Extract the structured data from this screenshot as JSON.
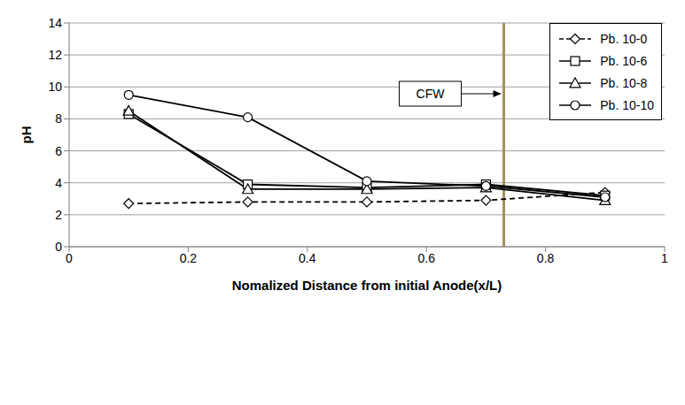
{
  "chart_data": {
    "type": "line",
    "x_label": "Nomalized Distance from initial Anode(x/L)",
    "y_label": "pH",
    "x": [
      0.1,
      0.3,
      0.5,
      0.7,
      0.9
    ],
    "series": [
      {
        "name": "Pb. 10-0",
        "color": "#000000",
        "marker": "diamond",
        "line_style": "dashed",
        "values": [
          2.7,
          2.8,
          2.8,
          2.9,
          3.4
        ]
      },
      {
        "name": "Pb. 10-6",
        "color": "#000000",
        "marker": "square",
        "line_style": "solid",
        "values": [
          8.3,
          3.9,
          3.7,
          3.9,
          3.2
        ]
      },
      {
        "name": "Pb. 10-8",
        "color": "#000000",
        "marker": "triangle",
        "line_style": "solid",
        "values": [
          8.5,
          3.6,
          3.6,
          3.7,
          2.9
        ]
      },
      {
        "name": "Pb. 10-10",
        "color": "#000000",
        "marker": "circle",
        "line_style": "solid",
        "values": [
          9.5,
          8.1,
          4.1,
          3.8,
          3.1
        ]
      }
    ],
    "xlim": [
      0,
      1
    ],
    "xticks": [
      0,
      0.2,
      0.4,
      0.6,
      0.8,
      1
    ],
    "ylim": [
      0,
      14
    ],
    "yticks": [
      0,
      2,
      4,
      6,
      8,
      10,
      12,
      14
    ],
    "grid": true,
    "legend": "top-right",
    "vertical_line": {
      "x": 0.73,
      "label": "CFW",
      "color": "#a0905c"
    }
  }
}
